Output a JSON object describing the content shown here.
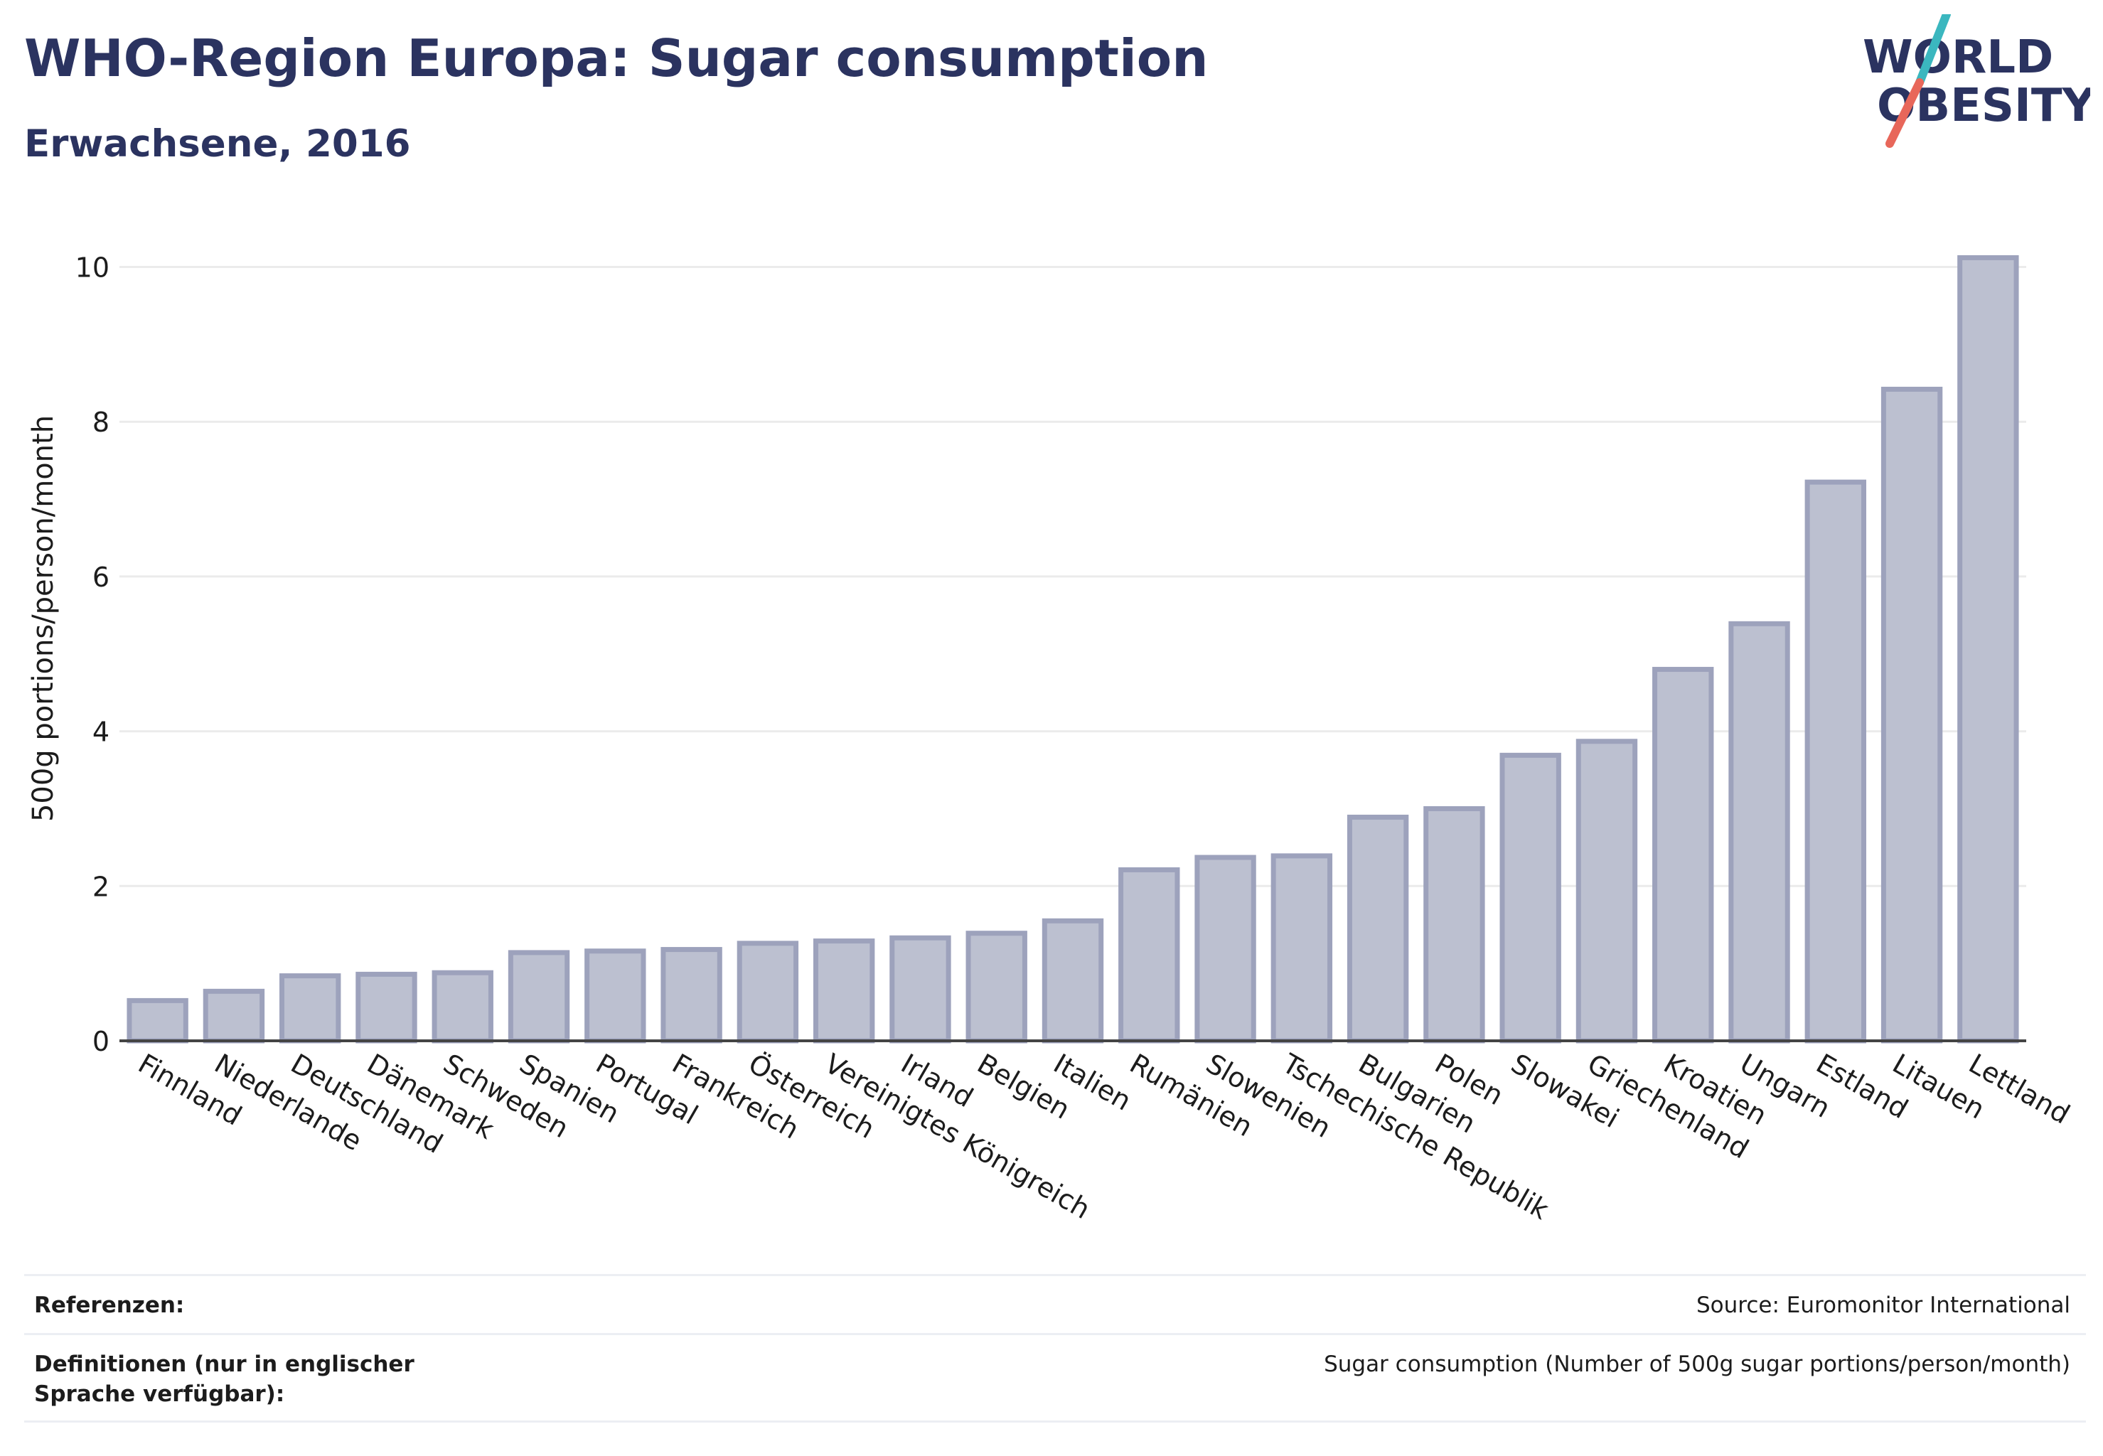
{
  "header": {
    "title": "WHO-Region Europa: Sugar consumption",
    "subtitle": "Erwachsene, 2016"
  },
  "logo": {
    "line1": "WORLD",
    "line2": "OBESITY",
    "text_color": "#2b3360",
    "slash_top_color": "#3bb7bf",
    "slash_bottom_color": "#e8675a"
  },
  "chart_data": {
    "type": "bar",
    "categories": [
      "Finnland",
      "Niederlande",
      "Deutschland",
      "Dänemark",
      "Schweden",
      "Spanien",
      "Portugal",
      "Frankreich",
      "Österreich",
      "Vereinigtes Königreich",
      "Irland",
      "Belgien",
      "Italien",
      "Rumänien",
      "Slowenien",
      "Tschechische Republik",
      "Bulgarien",
      "Polen",
      "Slowakei",
      "Griechenland",
      "Kroatien",
      "Ungarn",
      "Estland",
      "Litauen",
      "Lettland"
    ],
    "values": [
      0.52,
      0.64,
      0.84,
      0.86,
      0.88,
      1.14,
      1.16,
      1.18,
      1.26,
      1.29,
      1.33,
      1.39,
      1.55,
      2.21,
      2.37,
      2.39,
      2.89,
      3.0,
      3.69,
      3.87,
      4.8,
      5.39,
      7.22,
      8.42,
      10.12
    ],
    "ylabel": "500g portions/person/month",
    "yticks": [
      0,
      2,
      4,
      6,
      8,
      10
    ],
    "ylim": [
      0,
      10.4
    ],
    "grid": true,
    "bar_fill": "#bcc0d0",
    "bar_stroke": "#9da2bc",
    "legend": "none"
  },
  "footer": {
    "references_label": "Referenzen:",
    "references_value": "Source: Euromonitor International",
    "definitions_label": "Definitionen (nur in englischer Sprache verfügbar):",
    "definitions_value": "Sugar consumption (Number of 500g sugar portions/person/month)"
  }
}
